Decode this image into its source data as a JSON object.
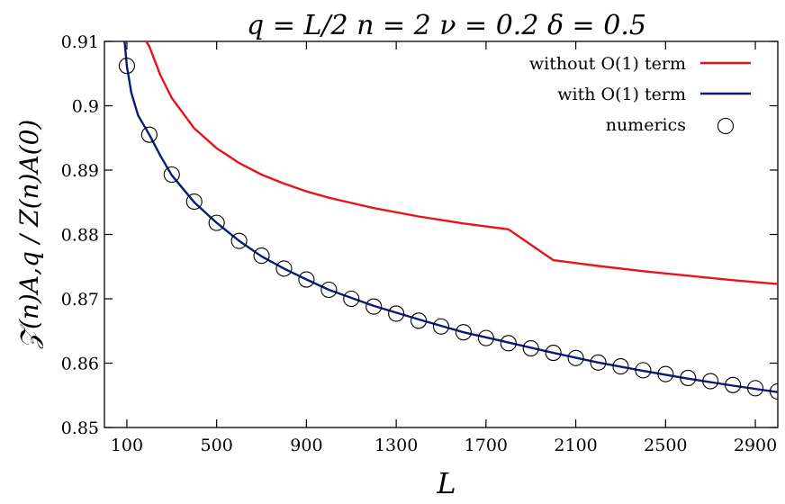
{
  "chart_data": {
    "type": "line",
    "title": "q = L/2    n = 2    ν = 0.2    δ = 0.5",
    "xlabel": "L",
    "ylabel": "𝒵(n)A,q / Z(n)A(0)",
    "xlim": [
      0,
      3000
    ],
    "ylim": [
      0.85,
      0.91
    ],
    "xticks": [
      100,
      500,
      900,
      1300,
      1700,
      2100,
      2500,
      2900
    ],
    "yticks": [
      0.85,
      0.86,
      0.87,
      0.88,
      0.89,
      0.9,
      0.91
    ],
    "ytick_labels": [
      "0.85",
      "0.86",
      "0.87",
      "0.88",
      "0.89",
      "0.9",
      "0.91"
    ],
    "grid": false,
    "legend_position": "top-right",
    "series": [
      {
        "name": "without O(1) term",
        "kind": "line",
        "color": "#e8141c",
        "x": [
          160,
          200,
          250,
          300,
          400,
          500,
          600,
          700,
          800,
          900,
          1000,
          1200,
          1400,
          1600,
          1800,
          2000,
          2200,
          2400,
          2600,
          2800,
          3000
        ],
        "y": [
          0.9115,
          0.9092,
          0.9047,
          0.9012,
          0.8965,
          0.8934,
          0.8911,
          0.8893,
          0.8879,
          0.8867,
          0.8857,
          0.8841,
          0.8828,
          0.8817,
          0.8808,
          0.876,
          0.8751,
          0.8743,
          0.8736,
          0.8729,
          0.8723
        ]
      },
      {
        "name": "with O(1) term",
        "kind": "line",
        "color": "#0a1a78",
        "x": [
          90,
          100,
          120,
          150,
          200,
          250,
          300,
          400,
          500,
          600,
          700,
          800,
          900,
          1000,
          1200,
          1400,
          1600,
          1800,
          2000,
          2200,
          2400,
          2600,
          2800,
          3000
        ],
        "y": [
          0.91,
          0.9062,
          0.902,
          0.8985,
          0.8955,
          0.8922,
          0.8892,
          0.885,
          0.8818,
          0.879,
          0.8766,
          0.8747,
          0.873,
          0.8714,
          0.8689,
          0.8668,
          0.8648,
          0.8632,
          0.8616,
          0.8601,
          0.8588,
          0.8576,
          0.8565,
          0.8555
        ]
      },
      {
        "name": "numerics",
        "kind": "scatter",
        "color": "#000000",
        "x": [
          100,
          200,
          300,
          400,
          500,
          600,
          700,
          800,
          900,
          1000,
          1100,
          1200,
          1300,
          1400,
          1500,
          1600,
          1700,
          1800,
          1900,
          2000,
          2100,
          2200,
          2300,
          2400,
          2500,
          2600,
          2700,
          2800,
          2900,
          3000
        ],
        "y": [
          0.9062,
          0.8955,
          0.8893,
          0.8851,
          0.8818,
          0.879,
          0.8767,
          0.8747,
          0.873,
          0.8714,
          0.87,
          0.8688,
          0.8677,
          0.8666,
          0.8657,
          0.8648,
          0.8639,
          0.8631,
          0.8623,
          0.8616,
          0.8608,
          0.8601,
          0.8595,
          0.8589,
          0.8583,
          0.8577,
          0.8572,
          0.8566,
          0.8561,
          0.8556
        ]
      }
    ]
  }
}
